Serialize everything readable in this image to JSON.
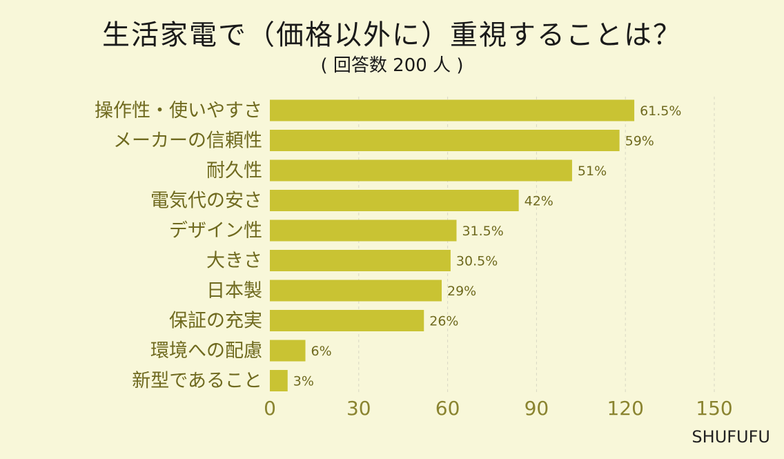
{
  "colors": {
    "background": "#f8f7d9",
    "bar": "#c9c333",
    "label": "#6f6a1f",
    "grid": "#d9d7c4"
  },
  "brand": "SHUFUFU",
  "chart_data": {
    "type": "bar",
    "orientation": "horizontal",
    "title": "生活家電で（価格以外に）重視することは？",
    "subtitle": "( 回答数 200 人 )",
    "categories": [
      "操作性・使いやすさ",
      "メーカーの信頼性",
      "耐久性",
      "電気代の安さ",
      "デザイン性",
      "大きさ",
      "日本製",
      "保証の充実",
      "環境への配慮",
      "新型であること"
    ],
    "values": [
      123,
      118,
      102,
      84,
      63,
      61,
      58,
      52,
      12,
      6
    ],
    "value_labels": [
      "61.5%",
      "59%",
      "51%",
      "42%",
      "31.5%",
      "30.5%",
      "29%",
      "26%",
      "6%",
      "3%"
    ],
    "xlim": [
      0,
      150
    ],
    "xticks": [
      "0",
      "30",
      "60",
      "90",
      "120",
      "150"
    ],
    "grid": true
  }
}
